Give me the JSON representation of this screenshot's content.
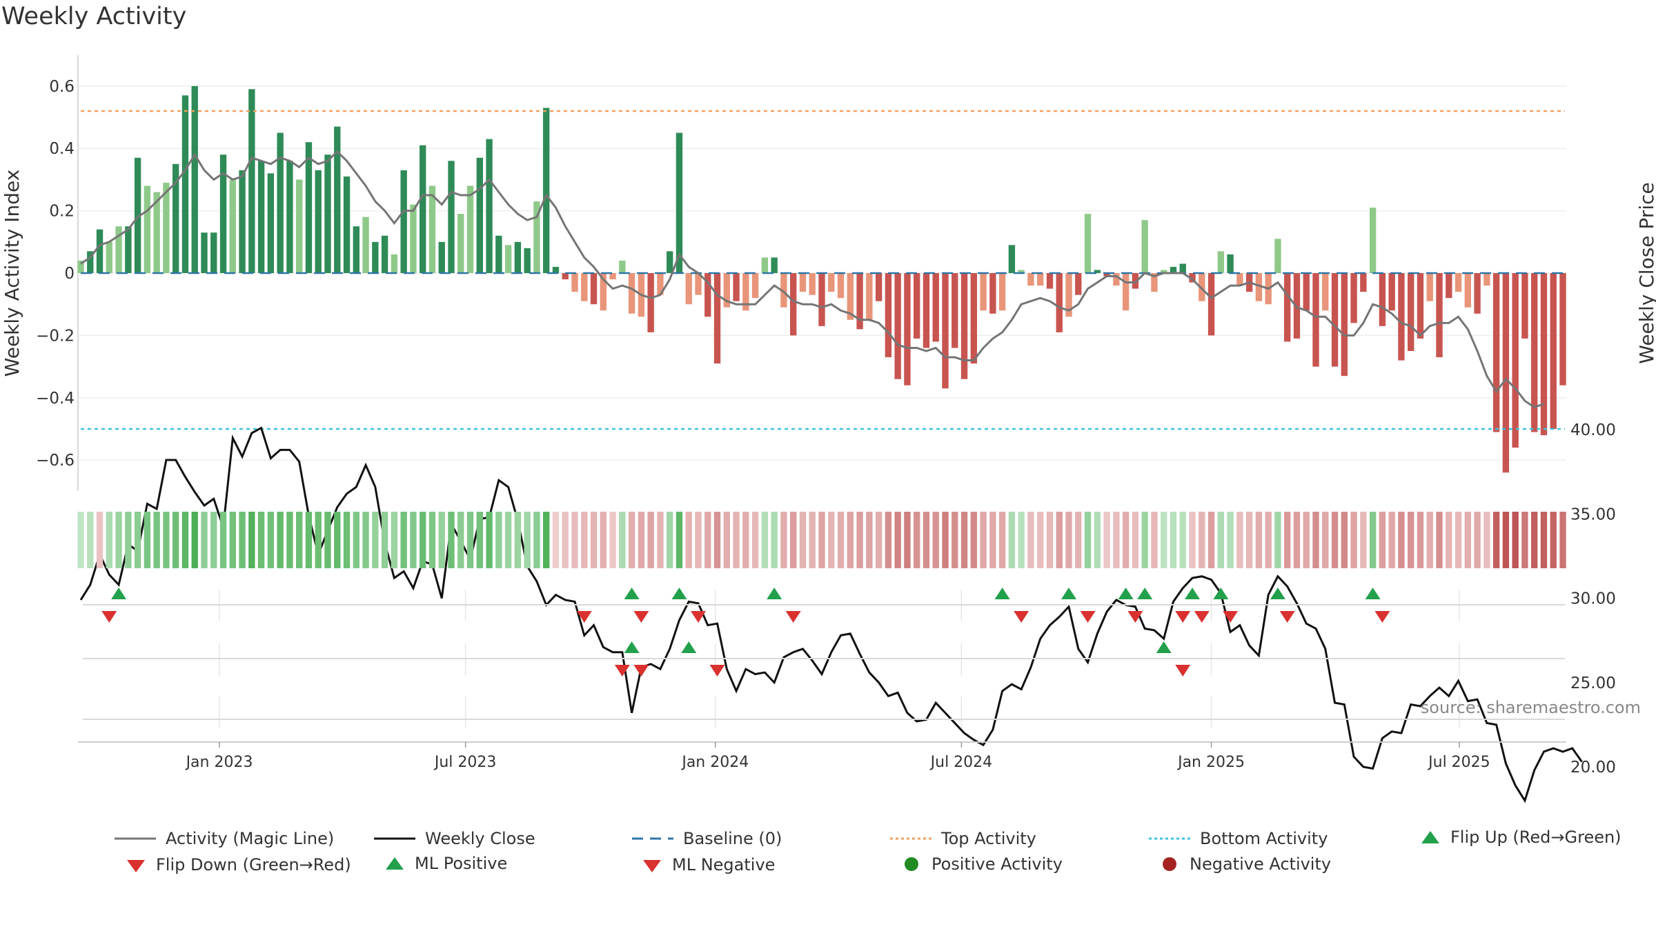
{
  "title": "Weekly Activity",
  "source": "source: sharemaestro.com",
  "colors": {
    "green": "#2e8b57",
    "lightgreen": "#8fc98a",
    "red": "#c85450",
    "salmon": "#e8957a",
    "magic": "#757575",
    "close": "#111111",
    "baseline": "#2e75a6",
    "top": "#f0a060",
    "bottom": "#3cc3de",
    "tri_up": "#22a04b",
    "tri_down": "#d9312f"
  },
  "chart_data": {
    "type": "bar+line",
    "title": "Weekly Activity",
    "ylabel": "Weekly Activity Index",
    "y2label": "Weekly Close Price",
    "ylim": [
      -0.7,
      0.7
    ],
    "y2lim": [
      17.0,
      43.0
    ],
    "yticks": [
      0.6,
      0.4,
      0.2,
      0,
      -0.2,
      -0.4,
      -0.6
    ],
    "ytick_labels": [
      "0.6",
      "0.4",
      "0.2",
      "0",
      "−0.2",
      "−0.4",
      "−0.6"
    ],
    "y2ticks": [
      40,
      35,
      30,
      25,
      20
    ],
    "y2tick_labels": [
      "40.00",
      "35.00",
      "30.00",
      "25.00",
      "20.00"
    ],
    "x_weeks": 157,
    "x_tick_labels": [
      "Jan 2023",
      "Jul 2023",
      "Jan 2024",
      "Jul 2024",
      "Jan 2025",
      "Jul 2025"
    ],
    "x_tick_weeks": [
      14.6,
      40.5,
      66.8,
      92.7,
      119.0,
      145.1
    ],
    "baseline": 0,
    "top_activity": 0.52,
    "bottom_activity": -0.5,
    "activity": [
      0.04,
      0.07,
      0.14,
      0.1,
      0.15,
      0.15,
      0.37,
      0.28,
      0.26,
      0.29,
      0.35,
      0.57,
      0.6,
      0.13,
      0.13,
      0.38,
      0.3,
      0.33,
      0.59,
      0.36,
      0.32,
      0.45,
      0.36,
      0.3,
      0.42,
      0.33,
      0.38,
      0.47,
      0.31,
      0.15,
      0.18,
      0.1,
      0.12,
      0.06,
      0.33,
      0.22,
      0.41,
      0.28,
      0.1,
      0.36,
      0.19,
      0.28,
      0.37,
      0.43,
      0.12,
      0.09,
      0.1,
      0.08,
      0.23,
      0.53,
      0.02,
      -0.02,
      -0.06,
      -0.09,
      -0.1,
      -0.12,
      -0.02,
      0.04,
      -0.13,
      -0.14,
      -0.19,
      -0.07,
      0.07,
      0.45,
      -0.1,
      -0.07,
      -0.14,
      -0.29,
      -0.11,
      -0.09,
      -0.12,
      -0.08,
      0.05,
      0.05,
      -0.11,
      -0.2,
      -0.06,
      -0.07,
      -0.17,
      -0.06,
      -0.08,
      -0.15,
      -0.18,
      -0.15,
      -0.09,
      -0.27,
      -0.34,
      -0.36,
      -0.21,
      -0.24,
      -0.22,
      -0.37,
      -0.24,
      -0.34,
      -0.29,
      -0.12,
      -0.13,
      -0.12,
      0.09,
      0.01,
      -0.04,
      -0.04,
      -0.05,
      -0.19,
      -0.14,
      -0.07,
      0.19,
      0.01,
      -0.01,
      -0.04,
      -0.12,
      -0.05,
      0.17,
      -0.06,
      0.01,
      0.02,
      0.03,
      -0.03,
      -0.09,
      -0.2,
      0.07,
      0.06,
      -0.04,
      -0.06,
      -0.09,
      -0.1,
      0.11,
      -0.22,
      -0.21,
      -0.12,
      -0.3,
      -0.12,
      -0.3,
      -0.33,
      -0.16,
      -0.06,
      0.21,
      -0.17,
      -0.12,
      -0.28,
      -0.25,
      -0.21,
      -0.09,
      -0.27,
      -0.08,
      -0.06,
      -0.11,
      -0.13,
      -0.04,
      -0.51,
      -0.64,
      -0.56,
      -0.21,
      -0.51,
      -0.52,
      -0.5,
      -0.36
    ],
    "magic_line": [
      0.03,
      0.05,
      0.09,
      0.1,
      0.12,
      0.14,
      0.18,
      0.2,
      0.23,
      0.26,
      0.29,
      0.33,
      0.38,
      0.33,
      0.3,
      0.32,
      0.3,
      0.31,
      0.37,
      0.36,
      0.35,
      0.37,
      0.36,
      0.34,
      0.37,
      0.35,
      0.36,
      0.39,
      0.36,
      0.32,
      0.28,
      0.23,
      0.2,
      0.16,
      0.2,
      0.2,
      0.25,
      0.25,
      0.22,
      0.26,
      0.25,
      0.25,
      0.27,
      0.3,
      0.26,
      0.22,
      0.19,
      0.17,
      0.18,
      0.25,
      0.21,
      0.15,
      0.1,
      0.05,
      0.02,
      -0.02,
      -0.05,
      -0.04,
      -0.05,
      -0.07,
      -0.08,
      -0.07,
      -0.02,
      0.06,
      0.02,
      0.0,
      -0.03,
      -0.07,
      -0.09,
      -0.1,
      -0.1,
      -0.1,
      -0.07,
      -0.04,
      -0.06,
      -0.09,
      -0.1,
      -0.1,
      -0.11,
      -0.1,
      -0.12,
      -0.13,
      -0.15,
      -0.15,
      -0.16,
      -0.19,
      -0.23,
      -0.24,
      -0.24,
      -0.25,
      -0.24,
      -0.27,
      -0.27,
      -0.28,
      -0.28,
      -0.24,
      -0.21,
      -0.19,
      -0.15,
      -0.1,
      -0.09,
      -0.08,
      -0.09,
      -0.11,
      -0.12,
      -0.1,
      -0.05,
      -0.03,
      -0.01,
      -0.01,
      -0.03,
      -0.03,
      0.0,
      -0.01,
      0.0,
      0.0,
      0.0,
      -0.02,
      -0.05,
      -0.08,
      -0.06,
      -0.04,
      -0.04,
      -0.03,
      -0.04,
      -0.05,
      -0.03,
      -0.07,
      -0.11,
      -0.12,
      -0.14,
      -0.14,
      -0.17,
      -0.2,
      -0.2,
      -0.16,
      -0.1,
      -0.11,
      -0.13,
      -0.16,
      -0.17,
      -0.2,
      -0.17,
      -0.16,
      -0.16,
      -0.14,
      -0.18,
      -0.25,
      -0.33,
      -0.38,
      -0.34,
      -0.37,
      -0.41,
      -0.43,
      -0.42
    ],
    "weekly_close": [
      29.9,
      30.8,
      32.6,
      31.4,
      30.8,
      33.2,
      32.8,
      35.6,
      35.3,
      38.2,
      38.2,
      37.2,
      36.3,
      35.5,
      35.9,
      34.2,
      39.5,
      38.4,
      39.8,
      40.1,
      38.3,
      38.8,
      38.8,
      38.1,
      34.9,
      32.6,
      34.0,
      35.4,
      36.2,
      36.6,
      37.9,
      36.6,
      33.3,
      31.2,
      31.6,
      30.6,
      32.2,
      32.0,
      30.0,
      34.4,
      33.4,
      32.3,
      34.7,
      34.8,
      37.0,
      36.6,
      34.6,
      31.9,
      31.0,
      29.6,
      30.2,
      29.9,
      29.8,
      27.8,
      28.4,
      27.1,
      26.8,
      26.8,
      23.2,
      25.9,
      26.1,
      25.8,
      27.0,
      28.7,
      29.8,
      29.7,
      28.4,
      28.5,
      25.8,
      24.5,
      25.8,
      25.5,
      25.6,
      25.0,
      26.5,
      26.8,
      27.0,
      26.3,
      25.5,
      26.8,
      27.8,
      27.9,
      26.7,
      25.6,
      25.0,
      24.2,
      24.4,
      23.2,
      22.7,
      22.8,
      23.8,
      23.2,
      22.6,
      22.0,
      21.6,
      21.3,
      22.2,
      24.5,
      24.9,
      24.6,
      25.9,
      27.6,
      28.4,
      28.9,
      29.5,
      27.0,
      26.2,
      27.9,
      29.2,
      29.9,
      29.6,
      29.5,
      28.2,
      28.1,
      27.6,
      29.8,
      30.6,
      31.2,
      31.3,
      31.1,
      30.3,
      28.0,
      28.4,
      27.2,
      26.6,
      30.2,
      31.3,
      30.7,
      29.7,
      28.5,
      28.2,
      27.0,
      23.8,
      23.7,
      20.6,
      20.0,
      19.9,
      21.7,
      22.1,
      22.0,
      23.7,
      23.6,
      24.2,
      24.7,
      24.2,
      25.1,
      23.9,
      24.0,
      22.6,
      22.5,
      20.2,
      18.9,
      18.0,
      19.8,
      20.9,
      21.1,
      20.9,
      21.1,
      20.3
    ],
    "activity_strip": [
      0.05,
      0.08,
      -0.08,
      0.12,
      0.18,
      0.22,
      0.24,
      0.3,
      0.3,
      0.3,
      0.34,
      0.4,
      0.46,
      0.22,
      0.22,
      0.3,
      0.32,
      0.34,
      0.44,
      0.35,
      0.33,
      0.38,
      0.36,
      0.34,
      0.37,
      0.35,
      0.36,
      0.38,
      0.34,
      0.28,
      0.26,
      0.2,
      0.22,
      0.18,
      0.32,
      0.26,
      0.36,
      0.28,
      0.2,
      0.34,
      0.24,
      0.28,
      0.32,
      0.38,
      0.22,
      0.18,
      0.18,
      0.16,
      0.24,
      0.44,
      -0.04,
      -0.08,
      -0.1,
      -0.12,
      -0.14,
      -0.15,
      -0.06,
      0.12,
      -0.16,
      -0.18,
      -0.2,
      -0.14,
      0.16,
      0.4,
      -0.14,
      -0.12,
      -0.18,
      -0.26,
      -0.16,
      -0.14,
      -0.16,
      -0.12,
      0.1,
      0.12,
      -0.16,
      -0.22,
      -0.14,
      -0.14,
      -0.2,
      -0.14,
      -0.16,
      -0.2,
      -0.22,
      -0.2,
      -0.16,
      -0.28,
      -0.32,
      -0.34,
      -0.26,
      -0.28,
      -0.26,
      -0.34,
      -0.28,
      -0.32,
      -0.3,
      -0.18,
      -0.18,
      -0.18,
      0.12,
      0.08,
      -0.1,
      -0.1,
      -0.12,
      -0.22,
      -0.18,
      -0.14,
      0.2,
      0.1,
      -0.06,
      -0.1,
      -0.16,
      -0.1,
      0.18,
      -0.12,
      0.06,
      0.08,
      0.08,
      -0.08,
      -0.14,
      -0.22,
      0.12,
      0.1,
      -0.1,
      -0.12,
      -0.16,
      -0.16,
      0.16,
      -0.24,
      -0.22,
      -0.18,
      -0.28,
      -0.18,
      -0.28,
      -0.3,
      -0.2,
      -0.12,
      0.26,
      -0.22,
      -0.18,
      -0.28,
      -0.26,
      -0.24,
      -0.16,
      -0.28,
      -0.14,
      -0.12,
      -0.16,
      -0.18,
      -0.1,
      -0.46,
      -0.52,
      -0.5,
      -0.36,
      -0.46,
      -0.46,
      -0.44,
      -0.38
    ],
    "flip_up_weeks": [
      4,
      58,
      63,
      73,
      97,
      104,
      110,
      112,
      117,
      120,
      126,
      136
    ],
    "flip_down_weeks": [
      3,
      53,
      59,
      65,
      75,
      99,
      106,
      111,
      116,
      118,
      121,
      127,
      137
    ],
    "ml_positive_weeks": [
      58,
      64,
      114
    ],
    "ml_negative_weeks": [
      57,
      59,
      67,
      116
    ]
  },
  "legend": [
    {
      "label": "Activity (Magic Line)",
      "symbol": "line-gray"
    },
    {
      "label": "Weekly Close",
      "symbol": "line-black"
    },
    {
      "label": "Baseline (0)",
      "symbol": "dash-blue"
    },
    {
      "label": "Top Activity",
      "symbol": "dot-orange"
    },
    {
      "label": "Bottom Activity",
      "symbol": "dot-cyan"
    },
    {
      "label": "Flip Up (Red→Green)",
      "symbol": "triangle-up"
    },
    {
      "label": "Flip Down (Green→Red)",
      "symbol": "triangle-down"
    },
    {
      "label": "ML Positive",
      "symbol": "triangle-up"
    },
    {
      "label": "ML Negative",
      "symbol": "triangle-down"
    },
    {
      "label": "Positive Activity",
      "symbol": "circle-green"
    },
    {
      "label": "Negative Activity",
      "symbol": "circle-red"
    }
  ]
}
